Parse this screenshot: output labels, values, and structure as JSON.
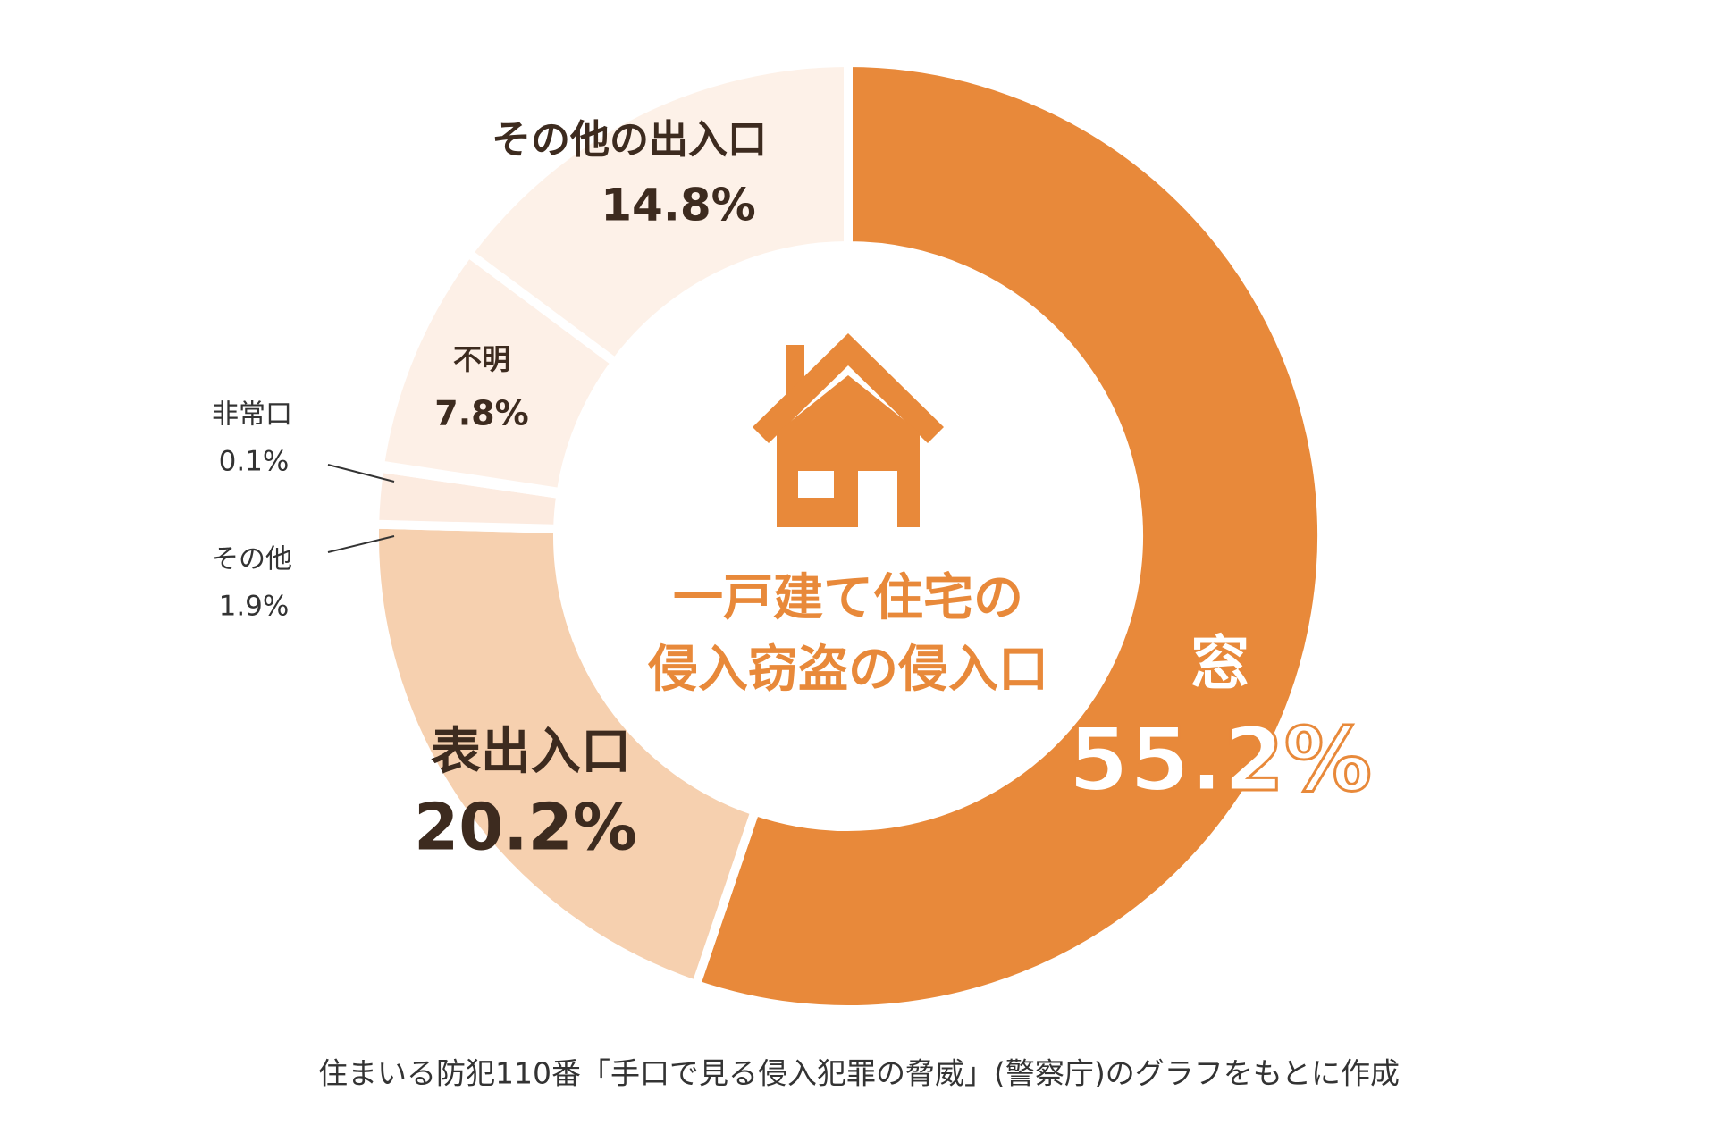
{
  "chart_data": {
    "type": "pie",
    "center_text": [
      "一戸建て住宅の",
      "侵入窃盗の侵入口"
    ],
    "categories": [
      "窓",
      "表出入口",
      "その他",
      "非常口",
      "不明",
      "その他の出入口"
    ],
    "values": [
      55.2,
      20.2,
      1.9,
      0.1,
      7.8,
      14.8
    ],
    "value_labels": [
      "55.2%",
      "20.2%",
      "1.9%",
      "0.1%",
      "7.8%",
      "14.8%"
    ],
    "colors": [
      "#e8893a",
      "#f6d0af",
      "#fcebe0",
      "#fcebe0",
      "#fdf0e7",
      "#fdf1e8"
    ],
    "source": "住まいる防犯110番「手口で見る侵入犯罪の脅威」(警察庁)のグラフをもとに作成"
  }
}
